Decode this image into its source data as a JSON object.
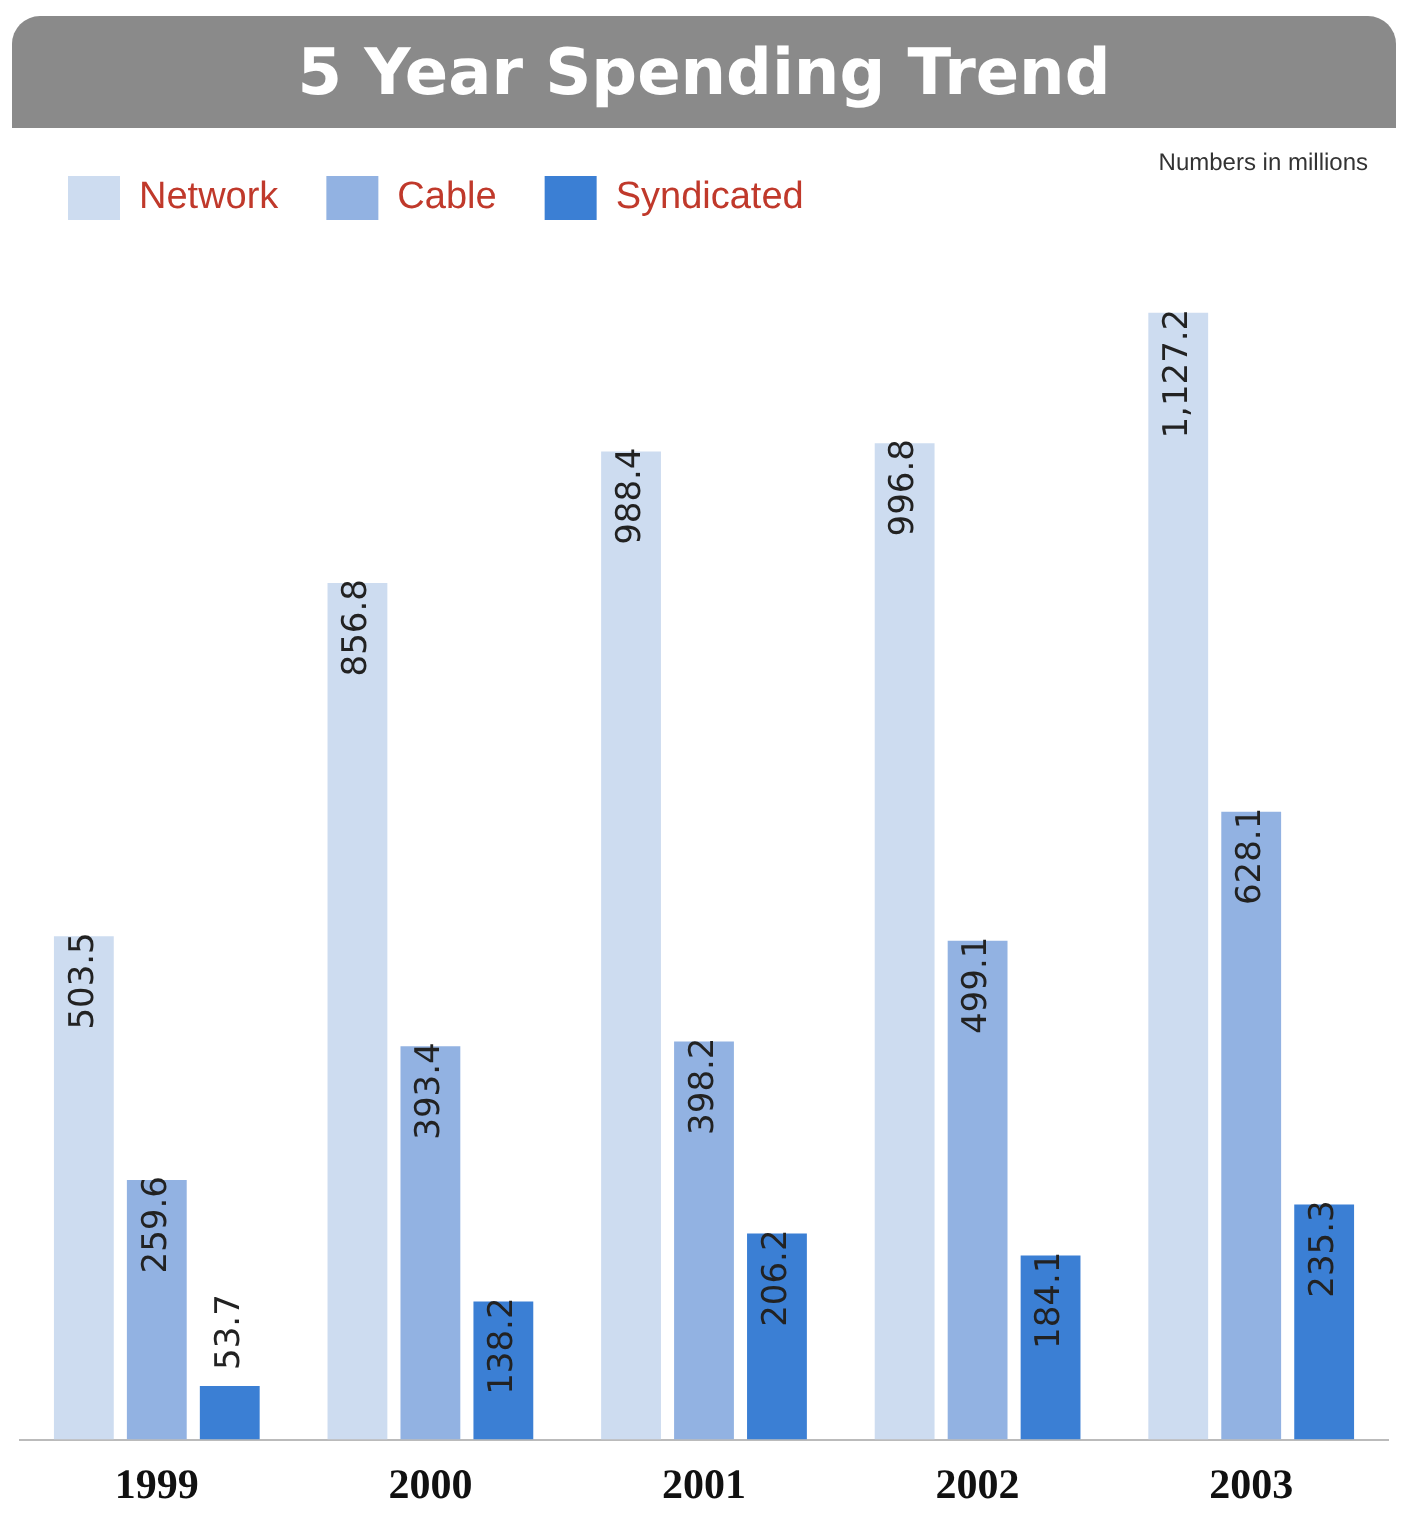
{
  "chart_data": {
    "type": "bar",
    "title": "5 Year Spending Trend",
    "categories": [
      "1999",
      "2000",
      "2001",
      "2002",
      "2003"
    ],
    "series": [
      {
        "name": "Network",
        "color": "#cddcf0",
        "values": [
          503.5,
          856.8,
          988.4,
          996.8,
          1127.2
        ],
        "value_labels": [
          "503.5",
          "856.8",
          "988.4",
          "996.8",
          "1,127.2"
        ]
      },
      {
        "name": "Cable",
        "color": "#92b2e2",
        "values": [
          259.6,
          393.4,
          398.2,
          499.1,
          628.1
        ],
        "value_labels": [
          "259.6",
          "393.4",
          "398.2",
          "499.1",
          "628.1"
        ]
      },
      {
        "name": "Syndicated",
        "color": "#3b7fd4",
        "values": [
          53.7,
          138.2,
          206.2,
          184.1,
          235.3
        ],
        "value_labels": [
          "53.7",
          "138.2",
          "206.2",
          "184.1",
          "235.3"
        ]
      }
    ],
    "legend": "top left",
    "grid": false,
    "tick_labels": "x",
    "annotations": [
      "Numbers in millions"
    ]
  }
}
